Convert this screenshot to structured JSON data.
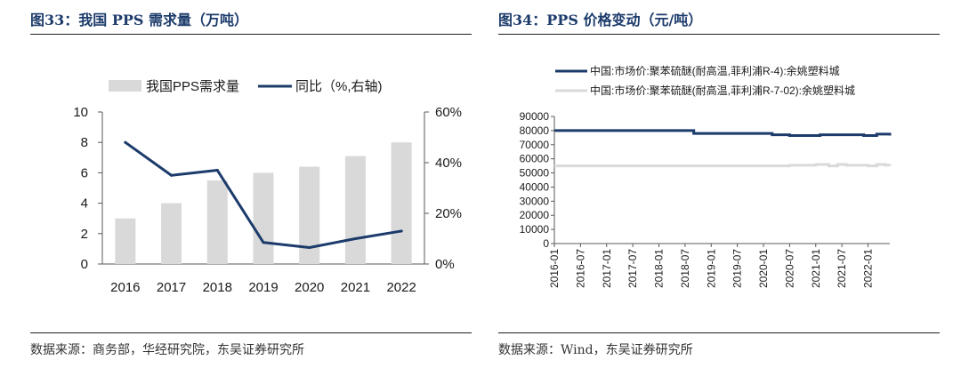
{
  "left_panel": {
    "figure_title": "图33：我国 PPS 需求量（万吨）",
    "source": "数据来源：商务部，华经研究院，东吴证券研究所"
  },
  "right_panel": {
    "figure_title": "图34：PPS 价格变动（元/吨）",
    "source": "数据来源：Wind，东吴证券研究所"
  },
  "chart_data": [
    {
      "type": "bar",
      "title": "",
      "categories": [
        "2016",
        "2017",
        "2018",
        "2019",
        "2020",
        "2021",
        "2022"
      ],
      "series": [
        {
          "name": "我国PPS需求量",
          "type": "bar",
          "axis": "left",
          "color": "#d9d9d9",
          "values": [
            3.0,
            4.0,
            5.5,
            6.0,
            6.4,
            7.1,
            8.0
          ]
        },
        {
          "name": "同比（%,右轴)",
          "type": "line",
          "axis": "right",
          "color": "#1c3b6b",
          "values": [
            48,
            35,
            37,
            8.5,
            6.5,
            10,
            13
          ]
        }
      ],
      "left_axis": {
        "min": 0,
        "max": 10,
        "ticks": [
          "0",
          "2",
          "4",
          "6",
          "8",
          "10"
        ]
      },
      "right_axis": {
        "min": 0,
        "max": 60,
        "ticks": [
          "0%",
          "20%",
          "40%",
          "60%"
        ]
      },
      "grid": false,
      "legend": "top"
    },
    {
      "type": "line",
      "title": "",
      "series": [
        {
          "name": "中国:市场价:聚苯硫醚(耐高温,菲利浦R-4):余姚塑料城",
          "color": "#1c3b6b",
          "points": [
            [
              "2016-01",
              80000
            ],
            [
              "2018-08",
              80000
            ],
            [
              "2018-09",
              78000
            ],
            [
              "2020-02",
              78000
            ],
            [
              "2020-03",
              77000
            ],
            [
              "2020-06",
              77000
            ],
            [
              "2020-07",
              76500
            ],
            [
              "2021-01",
              76500
            ],
            [
              "2021-02",
              77000
            ],
            [
              "2021-11",
              77000
            ],
            [
              "2021-12",
              76500
            ],
            [
              "2022-02",
              76500
            ],
            [
              "2022-03",
              77500
            ],
            [
              "2022-05",
              77500
            ],
            [
              "2022-06",
              76500
            ]
          ]
        },
        {
          "name": "中国:市场价:聚苯硫醚(耐高温,菲利浦R-7-02):余姚塑料城",
          "color": "#d9d9d9",
          "points": [
            [
              "2016-01",
              55000
            ],
            [
              "2020-06",
              55000
            ],
            [
              "2020-07",
              55500
            ],
            [
              "2021-01",
              56000
            ],
            [
              "2021-03",
              56000
            ],
            [
              "2021-04",
              55000
            ],
            [
              "2021-06",
              56000
            ],
            [
              "2021-08",
              55500
            ],
            [
              "2022-01",
              55000
            ],
            [
              "2022-03",
              56000
            ],
            [
              "2022-05",
              55500
            ],
            [
              "2022-06",
              55000
            ]
          ]
        }
      ],
      "y_axis": {
        "min": 0,
        "max": 90000,
        "ticks": [
          "0",
          "10000",
          "20000",
          "30000",
          "40000",
          "50000",
          "60000",
          "70000",
          "80000",
          "90000"
        ]
      },
      "x_axis": {
        "min": "2016-01",
        "max": "2022-06",
        "ticks": [
          "2016-01",
          "2016-07",
          "2017-01",
          "2017-07",
          "2018-01",
          "2018-07",
          "2019-01",
          "2019-07",
          "2020-01",
          "2020-07",
          "2021-01",
          "2021-07",
          "2022-01"
        ]
      },
      "grid": false,
      "legend": "top"
    }
  ]
}
